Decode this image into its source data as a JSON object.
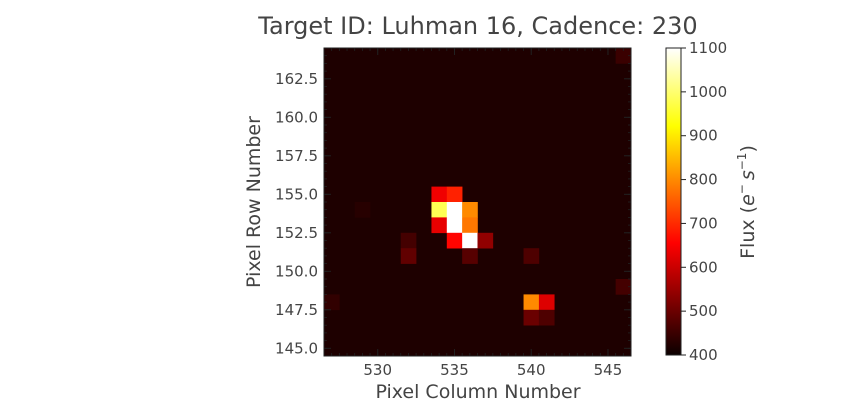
{
  "chart_data": {
    "type": "heatmap",
    "title": "Target ID: Luhman 16, Cadence: 230",
    "xlabel": "Pixel Column Number",
    "ylabel": "Pixel Row Number",
    "xlim": [
      526.5,
      546.5
    ],
    "ylim": [
      144.5,
      164.5
    ],
    "x_ticks": [
      530,
      535,
      540,
      545
    ],
    "y_ticks": [
      145.0,
      147.5,
      150.0,
      152.5,
      155.0,
      157.5,
      160.0,
      162.5
    ],
    "x_tick_labels": [
      "530",
      "535",
      "540",
      "545"
    ],
    "y_tick_labels": [
      "145.0",
      "147.5",
      "150.0",
      "152.5",
      "155.0",
      "157.5",
      "160.0",
      "162.5"
    ],
    "colorbar": {
      "label_main": "Flux (",
      "label_e": "e",
      "label_e_exp": "−",
      "label_s": "s",
      "label_s_exp": "−1",
      "label_close": ")",
      "min": 400,
      "max": 1100,
      "ticks": [
        400,
        500,
        600,
        700,
        800,
        900,
        1000,
        1100
      ],
      "tick_labels": [
        "400",
        "500",
        "600",
        "700",
        "800",
        "900",
        "1000",
        "1100"
      ],
      "colormap": "hot"
    },
    "background_flux": 420,
    "pixels": [
      {
        "col": 534,
        "row": 155,
        "flux": 640
      },
      {
        "col": 535,
        "row": 155,
        "flux": 690
      },
      {
        "col": 534,
        "row": 154,
        "flux": 980
      },
      {
        "col": 535,
        "row": 154,
        "flux": 1100
      },
      {
        "col": 536,
        "row": 154,
        "flux": 800
      },
      {
        "col": 534,
        "row": 153,
        "flux": 630
      },
      {
        "col": 535,
        "row": 153,
        "flux": 1100
      },
      {
        "col": 536,
        "row": 153,
        "flux": 780
      },
      {
        "col": 535,
        "row": 152,
        "flux": 660
      },
      {
        "col": 536,
        "row": 152,
        "flux": 1100
      },
      {
        "col": 537,
        "row": 152,
        "flux": 540
      },
      {
        "col": 532,
        "row": 152,
        "flux": 460
      },
      {
        "col": 532,
        "row": 151,
        "flux": 490
      },
      {
        "col": 536,
        "row": 151,
        "flux": 480
      },
      {
        "col": 540,
        "row": 151,
        "flux": 470
      },
      {
        "col": 540,
        "row": 148,
        "flux": 800
      },
      {
        "col": 541,
        "row": 148,
        "flux": 620
      },
      {
        "col": 540,
        "row": 147,
        "flux": 500
      },
      {
        "col": 541,
        "row": 147,
        "flux": 470
      },
      {
        "col": 527,
        "row": 148,
        "flux": 440
      },
      {
        "col": 546,
        "row": 149,
        "flux": 460
      },
      {
        "col": 546,
        "row": 164,
        "flux": 450
      },
      {
        "col": 529,
        "row": 154,
        "flux": 430
      }
    ]
  }
}
